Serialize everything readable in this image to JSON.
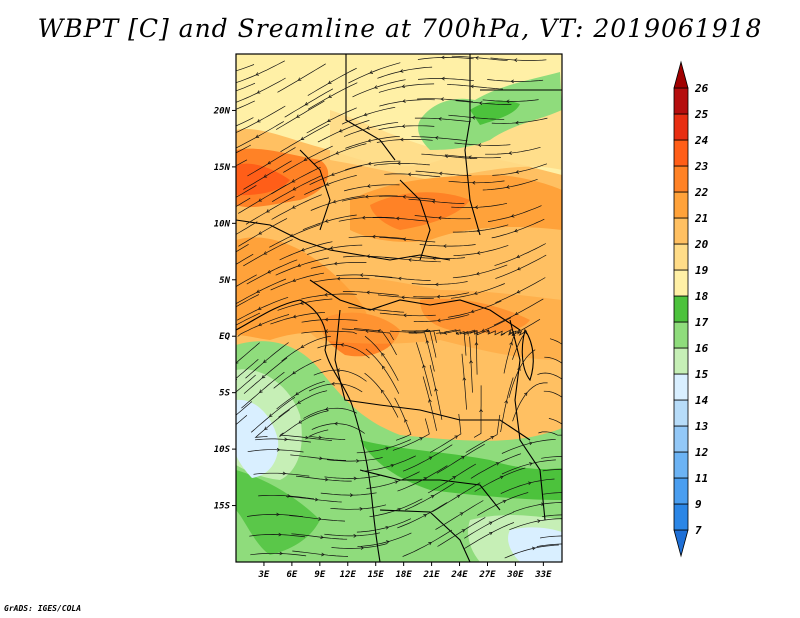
{
  "title": "WBPT [C] and Sreamline at 700hPa, VT: 2019061918",
  "credit": "GrADS: IGES/COLA",
  "map": {
    "lon_labels": [
      "3E",
      "6E",
      "9E",
      "12E",
      "15E",
      "18E",
      "21E",
      "24E",
      "27E",
      "30E",
      "33E"
    ],
    "lat_labels": [
      "20N",
      "15N",
      "10N",
      "5N",
      "EQ",
      "5S",
      "10S",
      "15S"
    ],
    "lon_range": [
      0,
      35
    ],
    "lat_range": [
      -20,
      25
    ]
  },
  "colorbar": {
    "labels": [
      "7",
      "9",
      "11",
      "12",
      "13",
      "14",
      "15",
      "16",
      "17",
      "18",
      "19",
      "20",
      "21",
      "22",
      "23",
      "24",
      "25",
      "26"
    ],
    "colors": [
      "#1e6fd6",
      "#2b86e6",
      "#4a9ef0",
      "#6cb3f4",
      "#93c8f7",
      "#b7dcf9",
      "#d9efff",
      "#c6efb6",
      "#8fdc7c",
      "#4cc23c",
      "#fff0a6",
      "#ffdc88",
      "#ffc062",
      "#ffa23a",
      "#ff8226",
      "#ff5e18",
      "#e82e12",
      "#b50e0e",
      "#a00000"
    ]
  }
}
